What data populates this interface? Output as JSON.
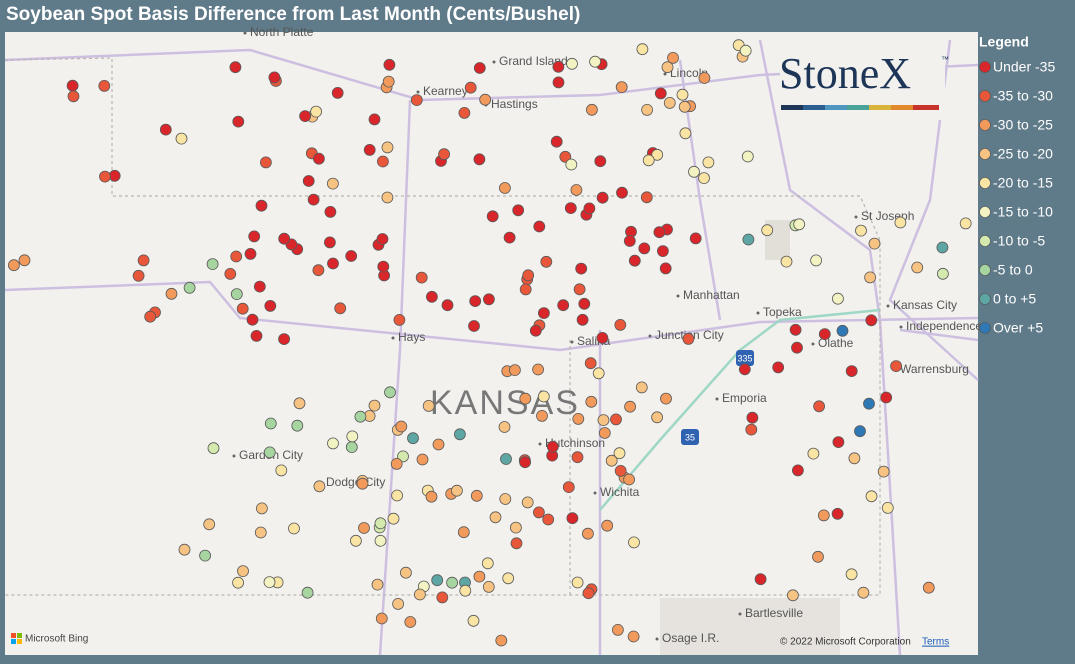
{
  "header": {
    "title": "Soybean Spot Basis Difference from Last Month (Cents/Bushel)"
  },
  "legend": {
    "title": "Legend",
    "items": [
      {
        "label": "Under -35",
        "color": "#d9262b"
      },
      {
        "label": "-35 to -30",
        "color": "#e8573a"
      },
      {
        "label": "-30 to -25",
        "color": "#f19a5c"
      },
      {
        "label": "-25 to -20",
        "color": "#f7c382"
      },
      {
        "label": "-20 to -15",
        "color": "#f9e4a3"
      },
      {
        "label": "-15 to -10",
        "color": "#f3f2c2"
      },
      {
        "label": "-10 to -5",
        "color": "#d3e9ae"
      },
      {
        "label": "-5 to 0",
        "color": "#a7d5a0"
      },
      {
        "label": "0 to +5",
        "color": "#5ea6a3"
      },
      {
        "label": "Over +5",
        "color": "#2f78b6"
      }
    ]
  },
  "map": {
    "places": [
      "North Platte",
      "Grand Island",
      "Kearney",
      "Hastings",
      "Lincoln",
      "St Joseph",
      "Manhattan",
      "Topeka",
      "Kansas City",
      "Independence",
      "Hays",
      "Junction City",
      "Salina",
      "Olathe",
      "Warrensburg",
      "Emporia",
      "Hutchinson",
      "Garden City",
      "Dodge City",
      "Wichita",
      "Bartlesville",
      "Osage I.R."
    ],
    "state_label": "KANSAS",
    "highways": [
      "335",
      "35"
    ],
    "logo": "StoneX",
    "logo_mark": "™",
    "attribution": {
      "provider": "Microsoft Bing",
      "copyright": "© 2022 Microsoft Corporation",
      "terms": "Terms"
    }
  }
}
